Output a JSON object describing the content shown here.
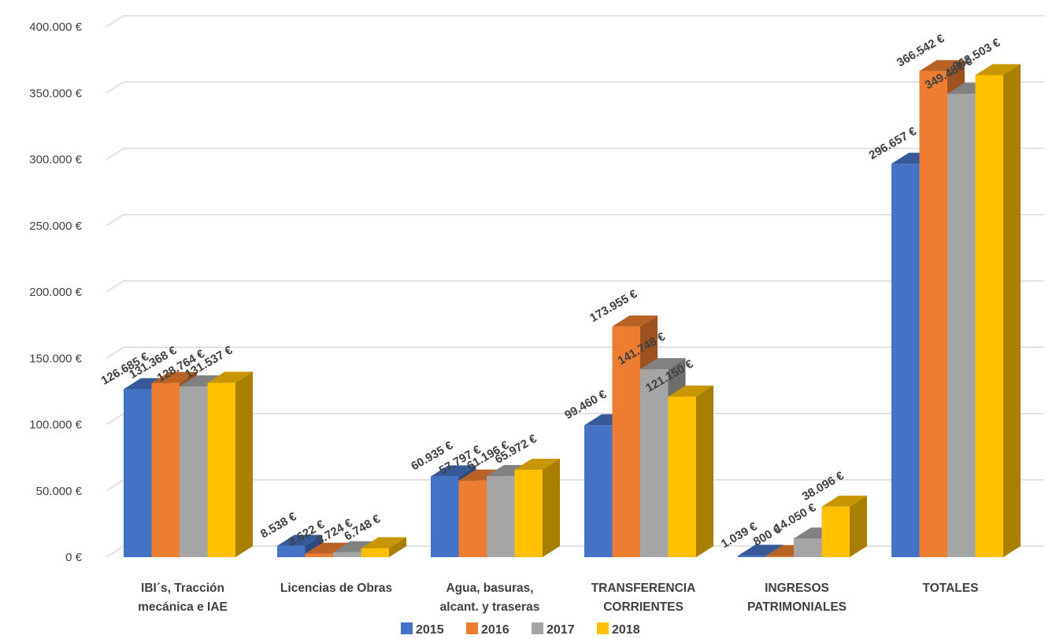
{
  "chart_data": {
    "type": "bar",
    "style": "3d-clustered-column",
    "categories": [
      [
        "IBI´s, Tracción",
        "mecánica e IAE"
      ],
      [
        "Licencias de Obras"
      ],
      [
        "Agua, basuras,",
        "alcant. y traseras"
      ],
      [
        "TRANSFERENCIA",
        "CORRIENTES"
      ],
      [
        "INGRESOS",
        "PATRIMONIALES"
      ],
      [
        "TOTALES"
      ]
    ],
    "series": [
      {
        "name": "2015",
        "color": "#4472C4",
        "values": [
          126685,
          8538,
          60935,
          99460,
          1039,
          296657
        ],
        "labels": [
          "126.685 €",
          "8.538 €",
          "60.935 €",
          "99.460 €",
          "1.039 €",
          "296.657 €"
        ]
      },
      {
        "name": "2016",
        "color": "#ED7D31",
        "values": [
          131368,
          2622,
          57797,
          173955,
          800,
          366542
        ],
        "labels": [
          "131.368 €",
          "2.622 €",
          "57.797 €",
          "173.955 €",
          "800 €",
          "366.542 €"
        ]
      },
      {
        "name": "2017",
        "color": "#A5A5A5",
        "values": [
          128764,
          3724,
          61196,
          141748,
          14050,
          349481
        ],
        "labels": [
          "128.764 €",
          "3.724 €",
          "61.196 €",
          "141.748 €",
          "14.050 €",
          "349.481 €"
        ]
      },
      {
        "name": "2018",
        "color": "#FFC000",
        "values": [
          131537,
          6748,
          65972,
          121150,
          38096,
          363503
        ],
        "labels": [
          "131.537 €",
          "6.748 €",
          "65.972 €",
          "121.150 €",
          "38.096 €",
          "363.503 €"
        ]
      }
    ],
    "yticks": [
      "0 €",
      "50.000 €",
      "100.000 €",
      "150.000 €",
      "200.000 €",
      "250.000 €",
      "300.000 €",
      "350.000 €",
      "400.000 €"
    ],
    "ylim": [
      0,
      400000
    ],
    "grid": true,
    "legend_position": "bottom",
    "title": "",
    "xlabel": "",
    "ylabel": ""
  }
}
